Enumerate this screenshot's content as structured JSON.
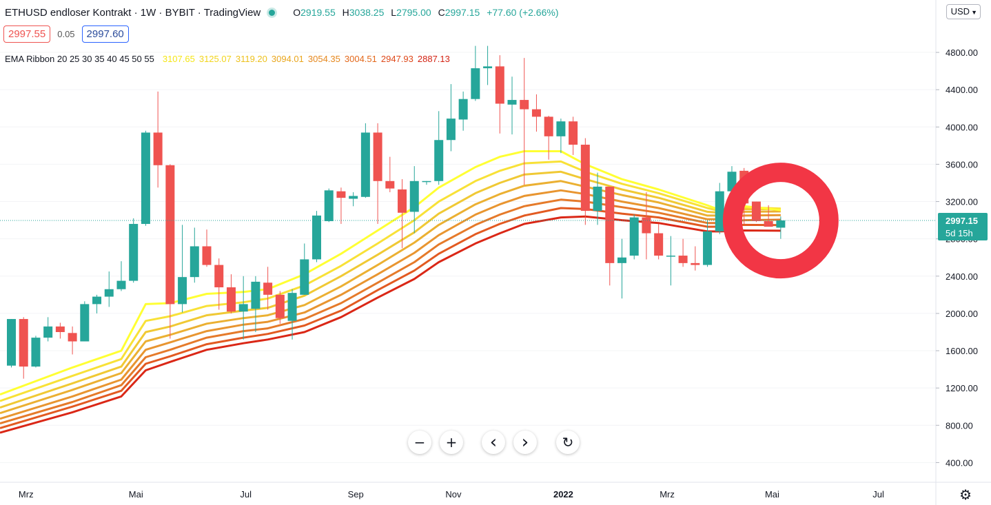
{
  "header": {
    "title": "ETHUSD endloser Kontrakt · 1W · BYBIT · TradingView",
    "open_label": "O",
    "open": "2919.55",
    "high_label": "H",
    "high": "3038.25",
    "low_label": "L",
    "low": "2795.00",
    "close_label": "C",
    "close": "2997.15",
    "change": "+77.60 (+2.66%)"
  },
  "trade": {
    "sell": "2997.55",
    "spread": "0.05",
    "buy": "2997.60"
  },
  "indicator": {
    "label": "EMA Ribbon 20 25 30 35 40 45 50 55",
    "values": [
      "3107.65",
      "3125.07",
      "3119.20",
      "3094.01",
      "3054.35",
      "3004.51",
      "2947.93",
      "2887.13"
    ],
    "value_colors": [
      "#f5e616",
      "#f2d51b",
      "#edc11c",
      "#e9a61c",
      "#e5871c",
      "#e3681a",
      "#de4718",
      "#d32212"
    ]
  },
  "currency": "USD",
  "price_tag": {
    "value": "2997.15",
    "countdown": "5d 15h"
  },
  "colors": {
    "up": "#26a69a",
    "down": "#ef5350",
    "annotation": "#f23645"
  },
  "icons": [
    "zoom-out-icon",
    "zoom-in-icon",
    "scroll-left-icon",
    "scroll-right-icon",
    "reset-icon",
    "gear-icon",
    "chevron-down-icon"
  ],
  "buttons": {
    "zoom_out": "−",
    "zoom_in": "+",
    "left": "‹",
    "right": "›",
    "reset": "↻",
    "gear": "⚙"
  },
  "chart_data": {
    "type": "candlestick",
    "ylim": [
      200,
      5000
    ],
    "y_ticks": [
      400,
      800,
      1200,
      1600,
      2000,
      2400,
      2800,
      3200,
      3600,
      4000,
      4400,
      4800
    ],
    "y_tick_labels": [
      "400.00",
      "800.00",
      "1200.00",
      "1600.00",
      "2000.00",
      "2400.00",
      "2800.00",
      "3200.00",
      "3600.00",
      "4000.00",
      "4400.00",
      "4800.00"
    ],
    "x_labels": [
      {
        "label": "Mrz",
        "week": 1.2
      },
      {
        "label": "Mai",
        "week": 10.2
      },
      {
        "label": "Jul",
        "week": 19.2
      },
      {
        "label": "Sep",
        "week": 28.2
      },
      {
        "label": "Nov",
        "week": 36.2
      },
      {
        "label": "2022",
        "week": 45.2,
        "bold": true
      },
      {
        "label": "Mrz",
        "week": 53.7
      },
      {
        "label": "Mai",
        "week": 62.3
      },
      {
        "label": "Jul",
        "week": 71.0
      }
    ],
    "candles": [
      [
        0,
        1440,
        1940,
        1420,
        1940
      ],
      [
        1,
        1940,
        1960,
        1300,
        1430
      ],
      [
        2,
        1430,
        1760,
        1420,
        1740
      ],
      [
        3,
        1740,
        1960,
        1700,
        1860
      ],
      [
        4,
        1860,
        1900,
        1730,
        1800
      ],
      [
        5,
        1790,
        1860,
        1560,
        1700
      ],
      [
        6,
        1700,
        2130,
        1700,
        2100
      ],
      [
        7,
        2100,
        2200,
        2000,
        2180
      ],
      [
        8,
        2180,
        2450,
        2070,
        2260
      ],
      [
        9,
        2260,
        2560,
        2240,
        2350
      ],
      [
        10,
        2350,
        3020,
        2330,
        2960
      ],
      [
        11,
        2960,
        3960,
        2940,
        3940
      ],
      [
        12,
        3940,
        4380,
        3350,
        3590
      ],
      [
        13,
        3590,
        3600,
        1730,
        2100
      ],
      [
        14,
        2100,
        2950,
        2010,
        2390
      ],
      [
        15,
        2390,
        2920,
        2330,
        2720
      ],
      [
        16,
        2720,
        2900,
        2500,
        2520
      ],
      [
        17,
        2520,
        2590,
        2040,
        2280
      ],
      [
        18,
        2280,
        2420,
        2000,
        2020
      ],
      [
        19,
        2020,
        2400,
        1720,
        2100
      ],
      [
        20,
        2050,
        2400,
        1800,
        2340
      ],
      [
        21,
        2330,
        2500,
        2040,
        2200
      ],
      [
        22,
        2200,
        2240,
        1890,
        1950
      ],
      [
        23,
        1920,
        2260,
        1720,
        2220
      ],
      [
        24,
        2200,
        2750,
        2200,
        2580
      ],
      [
        25,
        2580,
        3100,
        2550,
        3050
      ],
      [
        26,
        2990,
        3340,
        2980,
        3320
      ],
      [
        27,
        3310,
        3350,
        2960,
        3240
      ],
      [
        28,
        3230,
        3300,
        3150,
        3260
      ],
      [
        29,
        3250,
        4040,
        3240,
        3940
      ],
      [
        30,
        3940,
        4040,
        2960,
        3420
      ],
      [
        31,
        3420,
        3680,
        3300,
        3340
      ],
      [
        32,
        3330,
        3440,
        2700,
        3080
      ],
      [
        33,
        3090,
        3580,
        2860,
        3420
      ],
      [
        34,
        3420,
        3420,
        3380,
        3420
      ],
      [
        35,
        3420,
        4170,
        3380,
        3860
      ],
      [
        36,
        3860,
        4460,
        3740,
        4090
      ],
      [
        37,
        4080,
        4380,
        3960,
        4300
      ],
      [
        38,
        4300,
        4870,
        4280,
        4630
      ],
      [
        39,
        4630,
        4870,
        4450,
        4650
      ],
      [
        40,
        4650,
        4770,
        3930,
        4250
      ],
      [
        41,
        4240,
        4540,
        3920,
        4290
      ],
      [
        42,
        4290,
        4740,
        3380,
        4190
      ],
      [
        43,
        4190,
        4350,
        3950,
        4110
      ],
      [
        44,
        4110,
        4120,
        3650,
        3900
      ],
      [
        45,
        3900,
        4090,
        3720,
        4060
      ],
      [
        46,
        4060,
        4110,
        3700,
        3810
      ],
      [
        47,
        3810,
        3880,
        2950,
        3100
      ],
      [
        48,
        3100,
        3510,
        2950,
        3360
      ],
      [
        49,
        3360,
        3360,
        2300,
        2540
      ],
      [
        50,
        2540,
        2800,
        2160,
        2600
      ],
      [
        51,
        2620,
        3060,
        2580,
        3030
      ],
      [
        52,
        3030,
        3300,
        2580,
        2860
      ],
      [
        53,
        2860,
        2960,
        2580,
        2620
      ],
      [
        54,
        2620,
        2830,
        2300,
        2620
      ],
      [
        55,
        2620,
        2800,
        2500,
        2540
      ],
      [
        56,
        2540,
        2720,
        2460,
        2520
      ],
      [
        57,
        2520,
        3000,
        2500,
        2880
      ],
      [
        58,
        2880,
        3400,
        2850,
        3310
      ],
      [
        59,
        3310,
        3580,
        3320,
        3520
      ],
      [
        60,
        3530,
        3560,
        2960,
        3180
      ],
      [
        61,
        3200,
        3200,
        2980,
        2990
      ],
      [
        62,
        2990,
        3160,
        2940,
        2930
      ],
      [
        63,
        2920,
        3040,
        2800,
        2997
      ]
    ]
  },
  "ribbon": {
    "colors": [
      "#ffff33",
      "#f8e137",
      "#f0c934",
      "#ebb032",
      "#e89530",
      "#e57a2a",
      "#e25a21",
      "#da2716"
    ],
    "lines": [
      [
        [
          0,
          1130
        ],
        [
          5,
          1420
        ],
        [
          9,
          1600
        ],
        [
          11,
          2100
        ],
        [
          13,
          2110
        ],
        [
          16,
          2210
        ],
        [
          19,
          2230
        ],
        [
          21,
          2260
        ],
        [
          24,
          2420
        ],
        [
          27,
          2640
        ],
        [
          30,
          2890
        ],
        [
          33,
          3140
        ],
        [
          35,
          3350
        ],
        [
          38,
          3570
        ],
        [
          40,
          3680
        ],
        [
          42,
          3740
        ],
        [
          45,
          3740
        ],
        [
          47,
          3600
        ],
        [
          50,
          3440
        ],
        [
          53,
          3330
        ],
        [
          57,
          3160
        ],
        [
          58,
          3110
        ],
        [
          60,
          3150
        ],
        [
          63,
          3108
        ]
      ],
      [
        [
          0,
          1060
        ],
        [
          5,
          1330
        ],
        [
          9,
          1510
        ],
        [
          11,
          1920
        ],
        [
          13,
          1970
        ],
        [
          16,
          2080
        ],
        [
          19,
          2120
        ],
        [
          21,
          2160
        ],
        [
          24,
          2300
        ],
        [
          27,
          2510
        ],
        [
          30,
          2750
        ],
        [
          33,
          3000
        ],
        [
          35,
          3200
        ],
        [
          38,
          3420
        ],
        [
          40,
          3530
        ],
        [
          42,
          3610
        ],
        [
          45,
          3630
        ],
        [
          47,
          3520
        ],
        [
          50,
          3390
        ],
        [
          53,
          3290
        ],
        [
          57,
          3130
        ],
        [
          58,
          3100
        ],
        [
          60,
          3140
        ],
        [
          63,
          3125
        ]
      ],
      [
        [
          0,
          990
        ],
        [
          5,
          1250
        ],
        [
          9,
          1430
        ],
        [
          11,
          1800
        ],
        [
          13,
          1860
        ],
        [
          16,
          1980
        ],
        [
          19,
          2030
        ],
        [
          21,
          2060
        ],
        [
          24,
          2190
        ],
        [
          27,
          2400
        ],
        [
          30,
          2630
        ],
        [
          33,
          2870
        ],
        [
          35,
          3070
        ],
        [
          38,
          3290
        ],
        [
          40,
          3400
        ],
        [
          42,
          3490
        ],
        [
          45,
          3520
        ],
        [
          47,
          3440
        ],
        [
          50,
          3330
        ],
        [
          53,
          3240
        ],
        [
          57,
          3090
        ],
        [
          58,
          3080
        ],
        [
          60,
          3120
        ],
        [
          63,
          3119
        ]
      ],
      [
        [
          0,
          930
        ],
        [
          5,
          1180
        ],
        [
          9,
          1360
        ],
        [
          11,
          1700
        ],
        [
          13,
          1770
        ],
        [
          16,
          1890
        ],
        [
          19,
          1950
        ],
        [
          21,
          1980
        ],
        [
          24,
          2090
        ],
        [
          27,
          2290
        ],
        [
          30,
          2520
        ],
        [
          33,
          2760
        ],
        [
          35,
          2950
        ],
        [
          38,
          3170
        ],
        [
          40,
          3280
        ],
        [
          42,
          3370
        ],
        [
          45,
          3420
        ],
        [
          47,
          3360
        ],
        [
          50,
          3270
        ],
        [
          53,
          3190
        ],
        [
          57,
          3050
        ],
        [
          58,
          3050
        ],
        [
          60,
          3090
        ],
        [
          63,
          3094
        ]
      ],
      [
        [
          0,
          870
        ],
        [
          5,
          1110
        ],
        [
          9,
          1290
        ],
        [
          11,
          1610
        ],
        [
          13,
          1690
        ],
        [
          16,
          1810
        ],
        [
          19,
          1880
        ],
        [
          21,
          1910
        ],
        [
          24,
          2010
        ],
        [
          27,
          2200
        ],
        [
          30,
          2420
        ],
        [
          33,
          2650
        ],
        [
          35,
          2840
        ],
        [
          38,
          3060
        ],
        [
          40,
          3170
        ],
        [
          42,
          3260
        ],
        [
          45,
          3320
        ],
        [
          47,
          3280
        ],
        [
          50,
          3200
        ],
        [
          53,
          3130
        ],
        [
          57,
          3010
        ],
        [
          58,
          3010
        ],
        [
          60,
          3050
        ],
        [
          63,
          3054
        ]
      ],
      [
        [
          0,
          820
        ],
        [
          5,
          1050
        ],
        [
          9,
          1230
        ],
        [
          11,
          1530
        ],
        [
          13,
          1610
        ],
        [
          16,
          1740
        ],
        [
          19,
          1810
        ],
        [
          21,
          1840
        ],
        [
          24,
          1940
        ],
        [
          27,
          2110
        ],
        [
          30,
          2330
        ],
        [
          33,
          2550
        ],
        [
          35,
          2740
        ],
        [
          38,
          2950
        ],
        [
          40,
          3060
        ],
        [
          42,
          3150
        ],
        [
          45,
          3220
        ],
        [
          47,
          3200
        ],
        [
          50,
          3140
        ],
        [
          53,
          3080
        ],
        [
          57,
          2970
        ],
        [
          58,
          2970
        ],
        [
          60,
          3000
        ],
        [
          63,
          3005
        ]
      ],
      [
        [
          0,
          770
        ],
        [
          5,
          1000
        ],
        [
          9,
          1170
        ],
        [
          11,
          1460
        ],
        [
          13,
          1540
        ],
        [
          16,
          1670
        ],
        [
          19,
          1740
        ],
        [
          21,
          1780
        ],
        [
          24,
          1870
        ],
        [
          27,
          2030
        ],
        [
          30,
          2250
        ],
        [
          33,
          2460
        ],
        [
          35,
          2640
        ],
        [
          38,
          2850
        ],
        [
          40,
          2960
        ],
        [
          42,
          3050
        ],
        [
          45,
          3130
        ],
        [
          47,
          3120
        ],
        [
          50,
          3070
        ],
        [
          53,
          3030
        ],
        [
          57,
          2930
        ],
        [
          58,
          2930
        ],
        [
          60,
          2950
        ],
        [
          63,
          2948
        ]
      ],
      [
        [
          0,
          720
        ],
        [
          5,
          940
        ],
        [
          9,
          1110
        ],
        [
          11,
          1390
        ],
        [
          13,
          1480
        ],
        [
          16,
          1610
        ],
        [
          19,
          1680
        ],
        [
          21,
          1720
        ],
        [
          24,
          1800
        ],
        [
          27,
          1960
        ],
        [
          30,
          2170
        ],
        [
          33,
          2370
        ],
        [
          35,
          2550
        ],
        [
          38,
          2750
        ],
        [
          40,
          2860
        ],
        [
          42,
          2960
        ],
        [
          45,
          3030
        ],
        [
          47,
          3040
        ],
        [
          50,
          3000
        ],
        [
          53,
          2970
        ],
        [
          57,
          2880
        ],
        [
          58,
          2880
        ],
        [
          60,
          2890
        ],
        [
          63,
          2887
        ]
      ]
    ]
  }
}
